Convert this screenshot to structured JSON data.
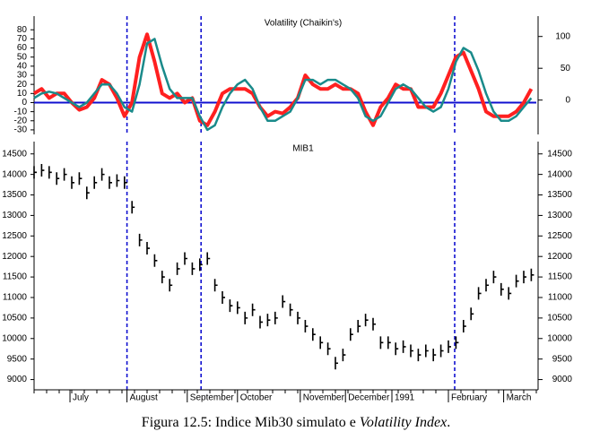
{
  "chart_data": [
    {
      "type": "line",
      "title": "Volatility (Chaikin's)",
      "x": [
        0,
        3,
        6,
        9,
        12,
        15,
        18,
        21,
        24,
        27,
        30,
        33,
        36,
        39,
        42,
        45,
        48,
        51,
        54,
        57,
        60,
        63,
        66,
        69,
        72,
        75,
        78,
        81,
        84,
        87,
        90,
        93,
        96,
        99,
        102,
        105,
        108,
        111,
        114,
        117,
        120,
        123,
        126,
        129,
        132,
        135,
        138,
        141,
        144,
        147,
        150,
        153,
        156,
        159,
        162,
        165,
        168,
        171,
        174,
        177,
        180,
        183,
        186,
        189,
        192,
        195,
        198
      ],
      "series": [
        {
          "color": "#ff2020",
          "width": 4,
          "values": [
            10,
            15,
            5,
            10,
            10,
            0,
            -8,
            -5,
            5,
            25,
            20,
            5,
            -15,
            0,
            50,
            75,
            45,
            10,
            5,
            10,
            0,
            5,
            -20,
            -25,
            -10,
            10,
            15,
            15,
            15,
            10,
            -5,
            -15,
            -10,
            -12,
            -5,
            5,
            30,
            20,
            15,
            15,
            20,
            15,
            15,
            10,
            -10,
            -25,
            -5,
            5,
            20,
            15,
            15,
            -5,
            -5,
            -5,
            10,
            30,
            50,
            55,
            35,
            15,
            -10,
            -15,
            -15,
            -15,
            -10,
            0,
            15
          ]
        },
        {
          "color": "#1a8a8a",
          "width": 2.5,
          "values": [
            5,
            10,
            12,
            10,
            5,
            0,
            -5,
            0,
            10,
            20,
            20,
            10,
            -5,
            -10,
            20,
            65,
            70,
            40,
            15,
            5,
            5,
            5,
            -15,
            -30,
            -25,
            -5,
            10,
            20,
            25,
            15,
            -5,
            -20,
            -20,
            -15,
            -10,
            5,
            25,
            25,
            20,
            25,
            25,
            20,
            15,
            5,
            -15,
            -20,
            -15,
            0,
            15,
            20,
            15,
            5,
            -5,
            -10,
            -5,
            15,
            45,
            60,
            55,
            35,
            10,
            -10,
            -20,
            -20,
            -15,
            -5,
            5
          ]
        }
      ],
      "xlim": [
        0,
        200
      ],
      "ylim": [
        -35,
        95
      ],
      "yticks": [
        -30,
        -20,
        -10,
        0,
        10,
        20,
        30,
        40,
        50,
        60,
        70,
        80
      ],
      "y2lim": [
        -54,
        132
      ],
      "y2ticks": [
        0,
        50,
        100
      ],
      "hlines": [
        0
      ],
      "hline_color": "#1010d0",
      "vlines": [
        37,
        66.5,
        167.5
      ],
      "vline_color": "#1010d0"
    },
    {
      "type": "stock",
      "title": "MIB1",
      "x": [
        0,
        3,
        6,
        9,
        12,
        15,
        18,
        21,
        24,
        27,
        30,
        33,
        36,
        39,
        42,
        45,
        48,
        51,
        54,
        57,
        60,
        63,
        66,
        69,
        72,
        75,
        78,
        81,
        84,
        87,
        90,
        93,
        96,
        99,
        102,
        105,
        108,
        111,
        114,
        117,
        120,
        123,
        126,
        129,
        132,
        135,
        138,
        141,
        144,
        147,
        150,
        153,
        156,
        159,
        162,
        165,
        168,
        171,
        174,
        177,
        180,
        183,
        186,
        189,
        192,
        195,
        198
      ],
      "values": [
        14050,
        14100,
        14050,
        13900,
        14000,
        13800,
        13900,
        13550,
        13800,
        14000,
        13800,
        13850,
        13800,
        13200,
        12400,
        12200,
        11900,
        11500,
        11300,
        11700,
        11950,
        11700,
        11800,
        11950,
        11300,
        11000,
        10800,
        10750,
        10500,
        10700,
        10400,
        10450,
        10500,
        10900,
        10700,
        10500,
        10300,
        10100,
        9900,
        9750,
        9400,
        9600,
        10100,
        10300,
        10450,
        10350,
        9900,
        9900,
        9750,
        9800,
        9700,
        9600,
        9700,
        9600,
        9700,
        9800,
        9900,
        10300,
        10600,
        11100,
        11300,
        11500,
        11200,
        11100,
        11400,
        11500,
        11550
      ],
      "color": "#000000",
      "xlim": [
        0,
        200
      ],
      "ylim": [
        8750,
        14800
      ],
      "yticks": [
        9000,
        9500,
        10000,
        10500,
        11000,
        11500,
        12000,
        12500,
        13000,
        13500,
        14000,
        14500
      ],
      "xticks": [
        {
          "value": 14.3,
          "label": "July"
        },
        {
          "value": 37,
          "label": "August"
        },
        {
          "value": 61,
          "label": "September"
        },
        {
          "value": 81,
          "label": "October"
        },
        {
          "value": 106,
          "label": "November"
        },
        {
          "value": 124,
          "label": "December"
        },
        {
          "value": 142.5,
          "label": "1991"
        },
        {
          "value": 165,
          "label": "February"
        },
        {
          "value": 187,
          "label": "March"
        }
      ],
      "vlines": [
        37,
        66.5,
        167.5
      ],
      "vline_color": "#1010d0"
    }
  ],
  "caption": {
    "text": "Figura 12.5: Indice Mib30 simulato e ",
    "italic": "Volatility Index",
    "end": "."
  }
}
